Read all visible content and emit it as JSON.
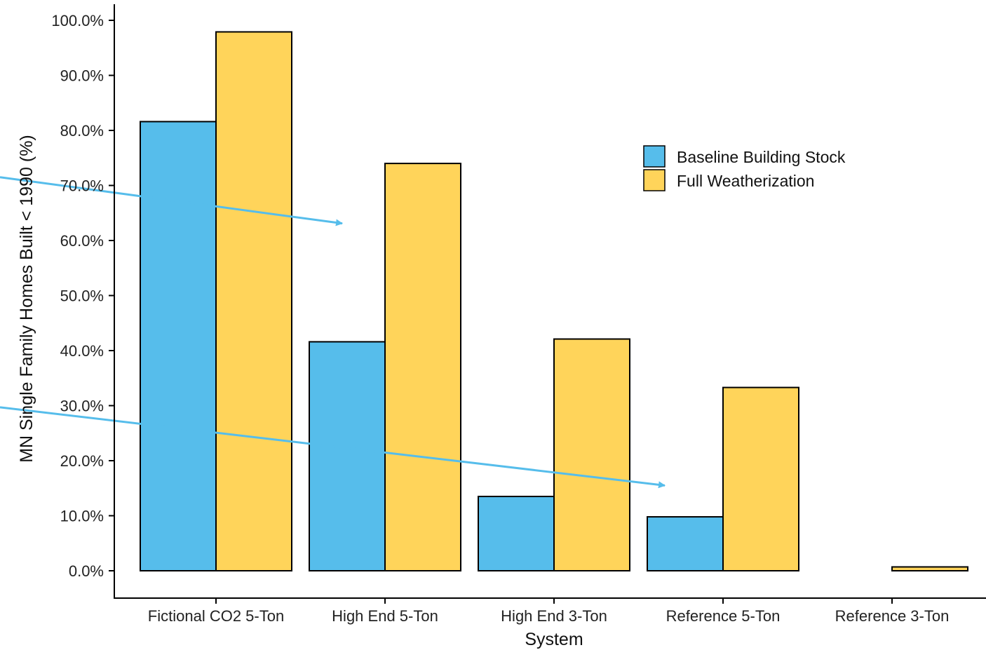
{
  "chart_data": {
    "type": "bar",
    "title": "",
    "xlabel": "System",
    "ylabel": "MN Single Family Homes Built < 1990 (%)",
    "ylim": [
      0,
      100
    ],
    "yticks": [
      0,
      10,
      20,
      30,
      40,
      50,
      60,
      70,
      80,
      90,
      100
    ],
    "ytick_labels": [
      "0.0%",
      "10.0%",
      "20.0%",
      "30.0%",
      "40.0%",
      "50.0%",
      "60.0%",
      "70.0%",
      "80.0%",
      "90.0%",
      "100.0%"
    ],
    "categories": [
      "Fictional CO2 5-Ton",
      "High End 5-Ton",
      "High End 3-Ton",
      "Reference 5-Ton",
      "Reference 3-Ton"
    ],
    "series": [
      {
        "name": "Baseline Building Stock",
        "color": "#56BDEB",
        "values": [
          81.6,
          41.6,
          13.5,
          9.8,
          0.0
        ]
      },
      {
        "name": "Full Weatherization",
        "color": "#FFD45A",
        "values": [
          97.9,
          74.0,
          42.1,
          33.3,
          0.7
        ]
      }
    ],
    "grid": false,
    "legend_position": "top-right",
    "annotations": [
      {
        "type": "arrow",
        "color": "#56BDEB",
        "from": {
          "category": "left-edge",
          "y": 71.5
        },
        "to": {
          "category": "High End 5-Ton",
          "y": 63.1
        }
      },
      {
        "type": "arrow",
        "color": "#56BDEB",
        "from": {
          "category": "left-edge",
          "y": 29.7
        },
        "to": {
          "category": "Reference 5-Ton",
          "y": 15.5
        }
      }
    ]
  }
}
